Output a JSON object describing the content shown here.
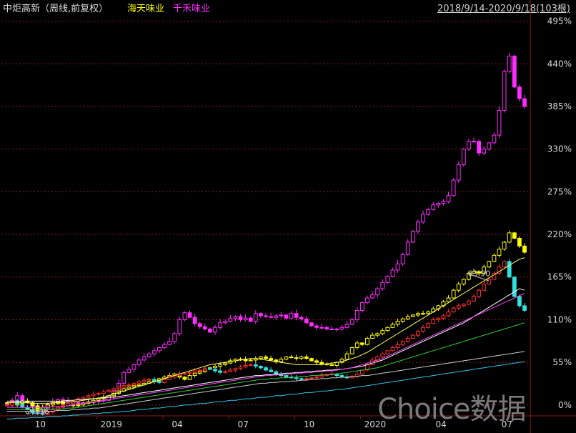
{
  "header": {
    "title": "中炬高新（周线,前复权）",
    "series1_name": "海天味业",
    "series2_name": "千禾味业",
    "date_range": "2018/9/14-2020/9/18(103根)"
  },
  "watermark": "Choice数据",
  "colors": {
    "main_up": "#ff3030",
    "main_down": "#33e0e0",
    "series1": "#ffff00",
    "series2": "#ff2cff",
    "ma_white": "#ffffff",
    "ma_yellow": "#ffff66",
    "ma_pink": "#ff40ff",
    "ma_green": "#33cc33",
    "ma_grey": "#cccccc",
    "ma_blue": "#33c3e6",
    "grid": "#8a1a1a"
  },
  "chart_data": {
    "type": "candlestick-overlay",
    "x_period": "weekly",
    "x_range": [
      "2018/9/14",
      "2020/9/18"
    ],
    "bar_count": 103,
    "y_unit": "%",
    "y_ticks": [
      "495%",
      "440%",
      "385%",
      "330%",
      "275%",
      "220%",
      "165%",
      "110%",
      "55%",
      "0%"
    ],
    "y_range": [
      -14,
      502
    ],
    "x_ticks": [
      "10",
      "2019",
      "04",
      "07",
      "10",
      "2020",
      "04",
      "07"
    ],
    "annotations": [
      {
        "text": "21.36",
        "x": 4,
        "y": -12,
        "label_x": 3,
        "label_y": -8
      },
      {
        "text": "83.90",
        "x": 95,
        "y": 160,
        "label_x": 90,
        "label_y": 170
      }
    ],
    "series": [
      {
        "name": "海天味业",
        "color": "#ffff00",
        "close": [
          3,
          0,
          2,
          5,
          3,
          -1,
          -8,
          -3,
          0,
          2,
          4,
          1,
          0,
          -1,
          0,
          2,
          4,
          6,
          8,
          10,
          12,
          15,
          18,
          21,
          23,
          25,
          26,
          28,
          30,
          32,
          34,
          36,
          38,
          40,
          36,
          33,
          38,
          41,
          43,
          46,
          48,
          50,
          52,
          54,
          57,
          59,
          59,
          57,
          58,
          60,
          62,
          60,
          58,
          56,
          59,
          62,
          61,
          60,
          62,
          60,
          57,
          55,
          53,
          52,
          51,
          55,
          59,
          66,
          74,
          80,
          78,
          86,
          90,
          92,
          96,
          100,
          104,
          108,
          111,
          114,
          116,
          118,
          118,
          120,
          124,
          128,
          133,
          138,
          148,
          156,
          162,
          170,
          172,
          170,
          178,
          185,
          193,
          201,
          210,
          222,
          215,
          205,
          197
        ]
      },
      {
        "name": "千禾味业",
        "color": "#ff2cff",
        "close": [
          2,
          6,
          12,
          5,
          3,
          -2,
          -10,
          -5,
          1,
          5,
          7,
          5,
          4,
          3,
          2,
          3,
          4,
          4,
          5,
          6,
          10,
          18,
          28,
          42,
          46,
          52,
          58,
          62,
          66,
          70,
          74,
          78,
          82,
          92,
          110,
          119,
          113,
          105,
          101,
          98,
          94,
          100,
          106,
          108,
          112,
          114,
          110,
          112,
          108,
          118,
          115,
          114,
          113,
          115,
          116,
          112,
          118,
          113,
          111,
          106,
          102,
          100,
          100,
          98,
          98,
          98,
          100,
          104,
          110,
          122,
          132,
          138,
          142,
          150,
          158,
          166,
          174,
          182,
          194,
          210,
          224,
          236,
          246,
          252,
          258,
          260,
          262,
          270,
          290,
          310,
          330,
          340,
          340,
          325,
          330,
          338,
          348,
          380,
          430,
          450,
          410,
          395,
          385
        ]
      }
    ],
    "main": {
      "name": "中炬高新",
      "up_color": "#ff3030",
      "down_color": "#33e0e0",
      "close": [
        0,
        4,
        1,
        -3,
        -6,
        -10,
        -11,
        -12,
        -9,
        -6,
        -3,
        -1,
        2,
        5,
        8,
        10,
        12,
        14,
        15,
        17,
        19,
        21,
        23,
        25,
        26,
        28,
        30,
        32,
        33,
        31,
        29,
        33,
        36,
        38,
        40,
        41,
        42,
        44,
        45,
        47,
        46,
        44,
        42,
        43,
        45,
        47,
        49,
        51,
        52,
        50,
        48,
        45,
        43,
        40,
        38,
        36,
        35,
        34,
        33,
        34,
        35,
        36,
        38,
        39,
        40,
        38,
        36,
        35,
        37,
        40,
        45,
        52,
        58,
        62,
        66,
        70,
        74,
        78,
        82,
        86,
        90,
        95,
        100,
        105,
        110,
        112,
        115,
        120,
        125,
        128,
        130,
        134,
        140,
        148,
        156,
        162,
        170,
        178,
        185,
        165,
        140,
        128,
        122
      ]
    },
    "moving_averages": [
      {
        "color": "#ffffff",
        "close": [
          5,
          5,
          5,
          5,
          5,
          5,
          5,
          5,
          5,
          5,
          5,
          5,
          6,
          6,
          7,
          7,
          8,
          8,
          9,
          9,
          10,
          10,
          11,
          12,
          13,
          14,
          15,
          16,
          17,
          18,
          19,
          20,
          21,
          22,
          23,
          24,
          25,
          26,
          27,
          28,
          29,
          30,
          31,
          32,
          33,
          34,
          35,
          36,
          37,
          38,
          38,
          39,
          39,
          40,
          40,
          41,
          41,
          42,
          42,
          43,
          43,
          44,
          44,
          45,
          45,
          46,
          46,
          47,
          48,
          49,
          50,
          52,
          54,
          56,
          58,
          61,
          64,
          67,
          70,
          73,
          76,
          79,
          82,
          85,
          88,
          91,
          94,
          97,
          100,
          103,
          106,
          110,
          114,
          118,
          122,
          126,
          130,
          134,
          138,
          142,
          146,
          150,
          148
        ]
      },
      {
        "color": "#ffff66",
        "close": [
          3,
          3,
          3,
          3,
          3,
          2,
          2,
          2,
          2,
          3,
          3,
          3,
          4,
          4,
          5,
          6,
          7,
          8,
          9,
          10,
          12,
          14,
          16,
          18,
          20,
          22,
          24,
          26,
          28,
          30,
          32,
          34,
          36,
          38,
          40,
          42,
          44,
          46,
          48,
          50,
          52,
          53,
          54,
          55,
          56,
          57,
          58,
          59,
          60,
          60,
          59,
          58,
          57,
          56,
          55,
          54,
          53,
          52,
          52,
          52,
          52,
          52,
          52,
          53,
          54,
          55,
          56,
          58,
          60,
          62,
          65,
          68,
          72,
          76,
          80,
          84,
          88,
          92,
          96,
          100,
          104,
          108,
          112,
          116,
          120,
          124,
          128,
          132,
          136,
          140,
          144,
          148,
          152,
          156,
          160,
          164,
          168,
          172,
          176,
          180,
          184,
          188,
          190
        ]
      },
      {
        "color": "#ff40ff",
        "close": [
          -3,
          -3,
          -3,
          -3,
          -3,
          -3,
          -3,
          -3,
          -3,
          -2,
          -2,
          -2,
          -1,
          0,
          1,
          2,
          3,
          4,
          5,
          6,
          7,
          8,
          9,
          10,
          11,
          12,
          13,
          14,
          15,
          16,
          17,
          18,
          19,
          20,
          21,
          22,
          23,
          24,
          25,
          26,
          27,
          28,
          29,
          30,
          31,
          32,
          33,
          34,
          35,
          36,
          37,
          38,
          38,
          39,
          39,
          40,
          40,
          41,
          41,
          42,
          42,
          43,
          43,
          44,
          44,
          45,
          46,
          47,
          48,
          50,
          52,
          54,
          56,
          58,
          60,
          63,
          66,
          69,
          72,
          75,
          78,
          81,
          84,
          87,
          90,
          93,
          96,
          99,
          102,
          105,
          108,
          111,
          114,
          117,
          120,
          123,
          126,
          129,
          132,
          135,
          138,
          141,
          144
        ]
      },
      {
        "color": "#33cc33",
        "close": [
          -6,
          -6,
          -6,
          -6,
          -6,
          -6,
          -6,
          -6,
          -6,
          -5,
          -5,
          -5,
          -4,
          -4,
          -3,
          -2,
          -1,
          0,
          1,
          2,
          3,
          4,
          5,
          6,
          7,
          8,
          9,
          10,
          11,
          12,
          13,
          14,
          15,
          16,
          17,
          18,
          19,
          20,
          21,
          22,
          23,
          24,
          25,
          26,
          27,
          28,
          29,
          30,
          31,
          32,
          33,
          33,
          34,
          34,
          35,
          35,
          36,
          36,
          37,
          37,
          38,
          38,
          39,
          39,
          40,
          40,
          41,
          42,
          43,
          44,
          45,
          46,
          47,
          48,
          50,
          52,
          54,
          56,
          58,
          60,
          62,
          64,
          66,
          68,
          70,
          72,
          74,
          76,
          78,
          80,
          82,
          84,
          86,
          88,
          90,
          92,
          94,
          96,
          98,
          100,
          102,
          104,
          106
        ]
      },
      {
        "color": "#cccccc",
        "close": [
          -8,
          -8,
          -8,
          -8,
          -8,
          -8,
          -8,
          -8,
          -8,
          -8,
          -7,
          -7,
          -7,
          -6,
          -6,
          -5,
          -5,
          -4,
          -4,
          -3,
          -2,
          -1,
          0,
          1,
          2,
          3,
          4,
          5,
          6,
          7,
          8,
          9,
          10,
          11,
          12,
          13,
          14,
          15,
          16,
          17,
          18,
          19,
          20,
          21,
          22,
          23,
          24,
          25,
          26,
          27,
          28,
          28,
          29,
          29,
          30,
          30,
          31,
          31,
          32,
          32,
          33,
          33,
          34,
          34,
          35,
          35,
          36,
          36,
          37,
          37,
          38,
          38,
          39,
          40,
          41,
          42,
          43,
          44,
          45,
          46,
          47,
          48,
          49,
          50,
          51,
          52,
          53,
          54,
          55,
          56,
          57,
          58,
          59,
          60,
          61,
          62,
          63,
          64,
          65,
          66,
          67,
          68,
          69
        ]
      },
      {
        "color": "#33c3e6",
        "close": [
          -18,
          -18,
          -17,
          -17,
          -17,
          -16,
          -16,
          -16,
          -15,
          -15,
          -15,
          -14,
          -14,
          -13,
          -13,
          -12,
          -12,
          -11,
          -11,
          -10,
          -10,
          -9,
          -9,
          -8,
          -8,
          -7,
          -6,
          -6,
          -5,
          -4,
          -4,
          -3,
          -2,
          -2,
          -1,
          0,
          0,
          1,
          2,
          2,
          3,
          4,
          4,
          5,
          6,
          6,
          7,
          8,
          8,
          9,
          10,
          10,
          11,
          12,
          12,
          13,
          14,
          14,
          15,
          16,
          16,
          17,
          18,
          18,
          19,
          20,
          20,
          21,
          22,
          23,
          24,
          25,
          26,
          27,
          28,
          29,
          30,
          31,
          32,
          33,
          34,
          35,
          36,
          37,
          38,
          39,
          40,
          41,
          42,
          43,
          44,
          45,
          46,
          47,
          48,
          49,
          50,
          51,
          52,
          53,
          54,
          55,
          56
        ]
      }
    ]
  }
}
